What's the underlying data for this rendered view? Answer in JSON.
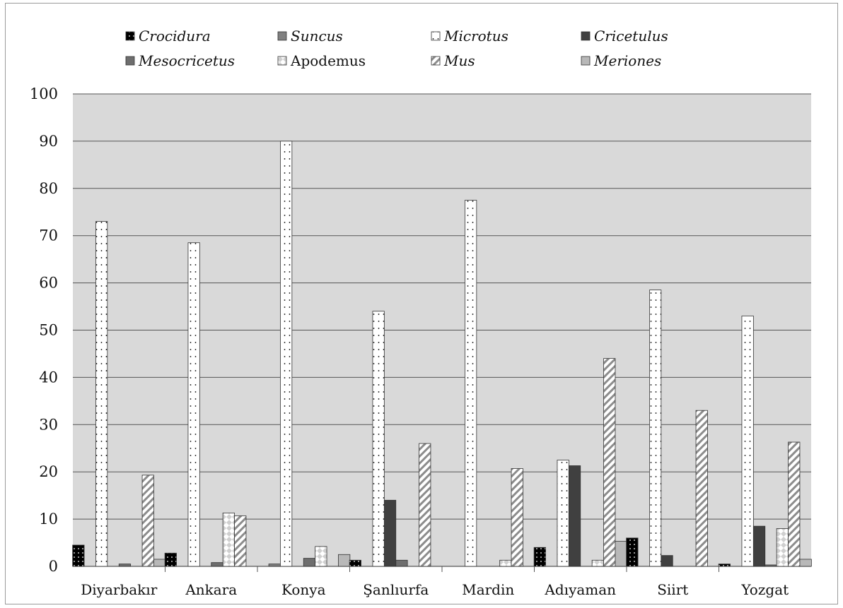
{
  "chart_data": {
    "type": "bar",
    "title": "",
    "xlabel": "",
    "ylabel": "",
    "ylim": [
      0,
      100
    ],
    "yticks": [
      "0",
      "10",
      "20",
      "30",
      "40",
      "50",
      "60",
      "70",
      "80",
      "90",
      "100"
    ],
    "grid": true,
    "legend_position": "top",
    "categories": [
      "Diyarbakır",
      "Ankara",
      "Konya",
      "Şanlıurfa",
      "Mardin",
      "Adıyaman",
      "Siirt",
      "Yozgat"
    ],
    "series": [
      {
        "name": "Crocidura",
        "italic": true,
        "pattern": "black-dots",
        "values": [
          4.5,
          2.8,
          0,
          1.3,
          0,
          4.0,
          6.0,
          0.5
        ]
      },
      {
        "name": "Suncus",
        "italic": true,
        "pattern": "gray-solid",
        "values": [
          0,
          0,
          0.5,
          0,
          0,
          0,
          0,
          0
        ]
      },
      {
        "name": "Microtus",
        "italic": true,
        "pattern": "white-dots",
        "values": [
          73,
          68.5,
          90,
          54,
          77.5,
          22.5,
          58.5,
          53
        ]
      },
      {
        "name": "Cricetulus",
        "italic": true,
        "pattern": "dark-solid",
        "values": [
          0,
          0,
          0,
          14,
          0,
          21.3,
          2.3,
          8.5
        ]
      },
      {
        "name": "Mesocricetus",
        "italic": true,
        "pattern": "mid-gray-solid",
        "values": [
          0.5,
          0.8,
          1.7,
          1.3,
          0,
          0,
          0,
          0.3
        ]
      },
      {
        "name": "Apodemus",
        "italic": false,
        "pattern": "light-diamonds",
        "values": [
          0,
          11.3,
          4.2,
          0,
          1.3,
          1.3,
          0,
          8.0
        ]
      },
      {
        "name": "Mus",
        "italic": true,
        "pattern": "diagonal-stripes",
        "values": [
          19.3,
          10.7,
          0,
          26,
          20.7,
          44,
          33,
          26.3
        ]
      },
      {
        "name": "Meriones",
        "italic": true,
        "pattern": "light-gray-solid",
        "values": [
          1.5,
          0,
          2.5,
          0,
          0,
          5.3,
          0,
          1.5
        ]
      }
    ]
  },
  "colors": {
    "plot_background": "#d9d9d9",
    "gridline": "#555555",
    "bar_outline": "#333333"
  }
}
